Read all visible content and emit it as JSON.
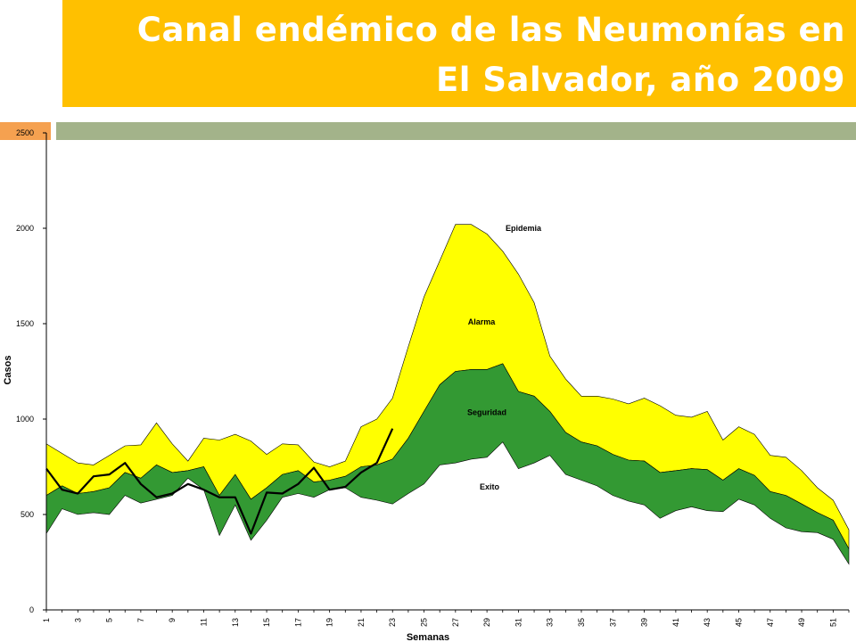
{
  "slide": {
    "title_line1": "Canal endémico de las Neumonías en",
    "title_line2": "El Salvador, año 2009"
  },
  "colors": {
    "title_bg": "#ffc000",
    "epidemia_band": "#ffff00",
    "seguridad_band": "#339933",
    "observed_line": "#000000"
  },
  "chart_data": {
    "type": "area",
    "xlabel": "Semanas",
    "ylabel": "Casos",
    "ylim": [
      0,
      2500
    ],
    "y_ticks": [
      0,
      500,
      1000,
      1500,
      2000,
      2500
    ],
    "x_ticks": [
      1,
      3,
      5,
      7,
      9,
      11,
      13,
      15,
      17,
      19,
      21,
      23,
      25,
      27,
      29,
      31,
      33,
      35,
      37,
      39,
      41,
      43,
      45,
      47,
      49,
      51
    ],
    "weeks": [
      1,
      2,
      3,
      4,
      5,
      6,
      7,
      8,
      9,
      10,
      11,
      12,
      13,
      14,
      15,
      16,
      17,
      18,
      19,
      20,
      21,
      22,
      23,
      24,
      25,
      26,
      27,
      28,
      29,
      30,
      31,
      32,
      33,
      34,
      35,
      36,
      37,
      38,
      39,
      40,
      41,
      42,
      43,
      44,
      45,
      46,
      47,
      48,
      49,
      50,
      51,
      52
    ],
    "zones": [
      {
        "name": "Epidemia"
      },
      {
        "name": "Alarma"
      },
      {
        "name": "Seguridad"
      },
      {
        "name": "Exito"
      }
    ],
    "series": [
      {
        "key": "upper",
        "values": [
          870,
          820,
          770,
          760,
          810,
          860,
          865,
          980,
          870,
          780,
          900,
          890,
          920,
          885,
          815,
          870,
          865,
          775,
          750,
          780,
          960,
          1000,
          1110,
          1380,
          1640,
          1830,
          2020,
          2020,
          1970,
          1880,
          1760,
          1610,
          1330,
          1210,
          1120,
          1120,
          1105,
          1080,
          1110,
          1070,
          1020,
          1010,
          1040,
          890,
          960,
          920,
          810,
          800,
          730,
          640,
          575,
          420
        ]
      },
      {
        "key": "median",
        "values": [
          600,
          650,
          610,
          620,
          640,
          720,
          690,
          760,
          720,
          730,
          750,
          600,
          710,
          580,
          640,
          710,
          730,
          670,
          680,
          700,
          750,
          760,
          790,
          900,
          1040,
          1180,
          1250,
          1260,
          1260,
          1290,
          1145,
          1120,
          1040,
          930,
          880,
          860,
          815,
          785,
          780,
          720,
          730,
          740,
          735,
          680,
          740,
          705,
          620,
          600,
          555,
          510,
          470,
          320
        ]
      },
      {
        "key": "lower",
        "values": [
          400,
          530,
          500,
          510,
          500,
          600,
          560,
          580,
          600,
          690,
          630,
          390,
          550,
          365,
          470,
          590,
          610,
          590,
          630,
          640,
          590,
          575,
          555,
          610,
          660,
          760,
          770,
          790,
          800,
          880,
          740,
          770,
          810,
          710,
          680,
          650,
          600,
          570,
          550,
          480,
          520,
          540,
          520,
          515,
          580,
          550,
          480,
          430,
          410,
          405,
          370,
          240
        ]
      },
      {
        "key": "observed_2009",
        "values": [
          740,
          630,
          610,
          700,
          710,
          770,
          660,
          590,
          610,
          660,
          630,
          590,
          590,
          400,
          615,
          610,
          660,
          745,
          630,
          645,
          720,
          770,
          950
        ]
      }
    ]
  }
}
